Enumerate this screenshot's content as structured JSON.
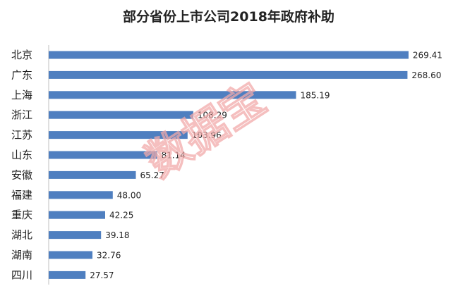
{
  "chart_data": {
    "type": "bar",
    "orientation": "horizontal",
    "title": "部分省份上市公司2018年政府补助",
    "categories": [
      "北京",
      "广东",
      "上海",
      "浙江",
      "江苏",
      "山东",
      "安徽",
      "福建",
      "重庆",
      "湖北",
      "湖南",
      "四川"
    ],
    "values": [
      269.41,
      268.6,
      185.19,
      108.29,
      103.96,
      81.14,
      65.27,
      48.0,
      42.25,
      39.18,
      32.76,
      27.57
    ],
    "value_labels": [
      "269.41",
      "268.60",
      "185.19",
      "108.29",
      "103.96",
      "81.14",
      "65.27",
      "48.00",
      "42.25",
      "39.18",
      "32.76",
      "27.57"
    ],
    "xlim": [
      0,
      270
    ],
    "grid": false,
    "legend": "none",
    "bar_color": "#4f7fc0"
  },
  "watermark": {
    "text": "数据宝",
    "color": "#f2aaaa"
  }
}
